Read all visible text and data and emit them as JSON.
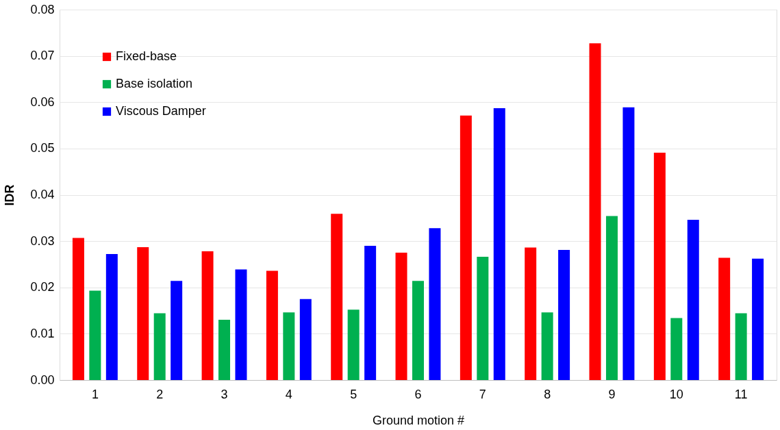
{
  "chart_data": {
    "type": "bar",
    "xlabel": "Ground motion #",
    "ylabel": "IDR",
    "categories": [
      "1",
      "2",
      "3",
      "4",
      "5",
      "6",
      "7",
      "8",
      "9",
      "10",
      "11"
    ],
    "series": [
      {
        "name": "Fixed-base",
        "color": "#ff0000",
        "values": [
          0.0307,
          0.0287,
          0.0278,
          0.0236,
          0.0359,
          0.0275,
          0.0571,
          0.0286,
          0.0727,
          0.0491,
          0.0264
        ]
      },
      {
        "name": "Base isolation",
        "color": "#00b050",
        "values": [
          0.0193,
          0.0144,
          0.013,
          0.0146,
          0.0152,
          0.0214,
          0.0266,
          0.0146,
          0.0354,
          0.0134,
          0.0144
        ]
      },
      {
        "name": "Viscous Damper",
        "color": "#0000ff",
        "values": [
          0.0272,
          0.0214,
          0.0239,
          0.0175,
          0.029,
          0.0328,
          0.0587,
          0.0281,
          0.0589,
          0.0346,
          0.0262
        ]
      }
    ],
    "ylim": [
      0,
      0.08
    ],
    "yticks": [
      {
        "value": 0,
        "label": "0.00"
      },
      0.01,
      0.02,
      0.03,
      0.04,
      0.05,
      0.06,
      0.07,
      0.08
    ],
    "grid": "y",
    "legend": "top left"
  }
}
